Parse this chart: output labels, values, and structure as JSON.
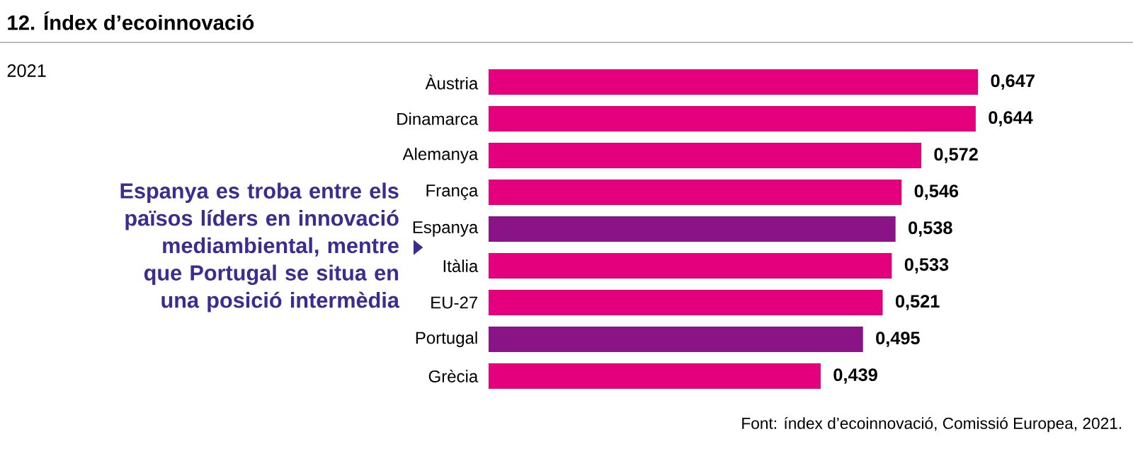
{
  "chart_data": {
    "type": "bar",
    "orientation": "horizontal",
    "title": "12. Índex d’ecoinnovació",
    "subtitle": "2021",
    "categories": [
      "Àustria",
      "Dinamarca",
      "Alemanya",
      "França",
      "Espanya",
      "Itàlia",
      "EU-27",
      "Portugal",
      "Grècia"
    ],
    "values": [
      0.647,
      0.644,
      0.572,
      0.546,
      0.538,
      0.533,
      0.521,
      0.495,
      0.439
    ],
    "value_labels": [
      "0,647",
      "0,644",
      "0,572",
      "0,546",
      "0,538",
      "0,533",
      "0,521",
      "0,495",
      "0,439"
    ],
    "colors": [
      "#e4007c",
      "#e4007c",
      "#e4007c",
      "#e4007c",
      "#8a1486",
      "#e4007c",
      "#e4007c",
      "#8a1486",
      "#e4007c"
    ],
    "annotations": [
      "Espanya es troba entre els països líders en innovació mediambiental, mentre que Portugal se situa en una posició intermèdia",
      "Font: índex d’ecoinnovació, Comissió Europea, 2021."
    ]
  }
}
